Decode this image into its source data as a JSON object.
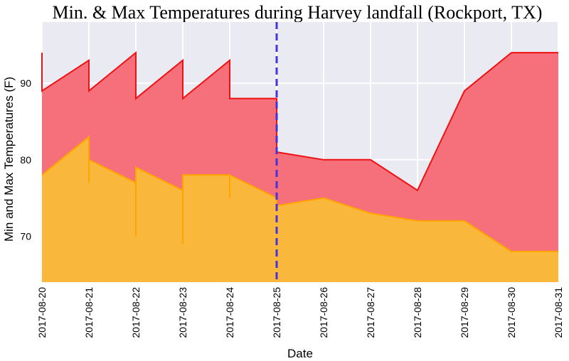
{
  "chart_data": {
    "type": "area",
    "title": "Min. & Max Temperatures during Harvey landfall (Rockport, TX)",
    "xlabel": "Date",
    "ylabel": "Min and Max Temperatures (F)",
    "x_ticks": [
      "2017-08-20",
      "2017-08-21",
      "2017-08-22",
      "2017-08-23",
      "2017-08-24",
      "2017-08-25",
      "2017-08-26",
      "2017-08-27",
      "2017-08-28",
      "2017-08-29",
      "2017-08-30",
      "2017-08-31"
    ],
    "y_ticks": [
      70,
      80,
      90
    ],
    "xlim": [
      "2017-08-20",
      "2017-08-31"
    ],
    "ylim": [
      64,
      98
    ],
    "grid": true,
    "landfall_marker": {
      "x": "2017-08-25",
      "style": "dashed",
      "color": "#4433dd"
    },
    "series": [
      {
        "color_fill": "#f5707a",
        "color_line": "#ee1111",
        "points": [
          [
            "2017-08-20",
            94
          ],
          [
            "2017-08-20",
            89
          ],
          [
            "2017-08-21",
            93
          ],
          [
            "2017-08-21",
            89
          ],
          [
            "2017-08-22",
            94
          ],
          [
            "2017-08-22",
            88
          ],
          [
            "2017-08-23",
            93
          ],
          [
            "2017-08-23",
            88
          ],
          [
            "2017-08-24",
            93
          ],
          [
            "2017-08-24",
            88
          ],
          [
            "2017-08-25",
            88
          ],
          [
            "2017-08-25",
            81
          ],
          [
            "2017-08-26",
            80
          ],
          [
            "2017-08-27",
            80
          ],
          [
            "2017-08-28",
            76
          ],
          [
            "2017-08-29",
            89
          ],
          [
            "2017-08-30",
            94
          ],
          [
            "2017-08-31",
            94
          ]
        ]
      },
      {
        "color_fill": "#f9b73c",
        "color_line": "#ffa500",
        "points": [
          [
            "2017-08-20",
            78
          ],
          [
            "2017-08-21",
            83
          ],
          [
            "2017-08-21",
            77
          ],
          [
            "2017-08-21",
            80
          ],
          [
            "2017-08-22",
            77
          ],
          [
            "2017-08-22",
            70
          ],
          [
            "2017-08-22",
            79
          ],
          [
            "2017-08-23",
            76
          ],
          [
            "2017-08-23",
            69
          ],
          [
            "2017-08-23",
            78
          ],
          [
            "2017-08-24",
            78
          ],
          [
            "2017-08-24",
            75
          ],
          [
            "2017-08-24",
            78
          ],
          [
            "2017-08-25",
            75
          ],
          [
            "2017-08-25",
            74
          ],
          [
            "2017-08-26",
            75
          ],
          [
            "2017-08-27",
            73
          ],
          [
            "2017-08-28",
            72
          ],
          [
            "2017-08-29",
            72
          ],
          [
            "2017-08-30",
            68
          ],
          [
            "2017-08-31",
            68
          ]
        ]
      }
    ]
  }
}
